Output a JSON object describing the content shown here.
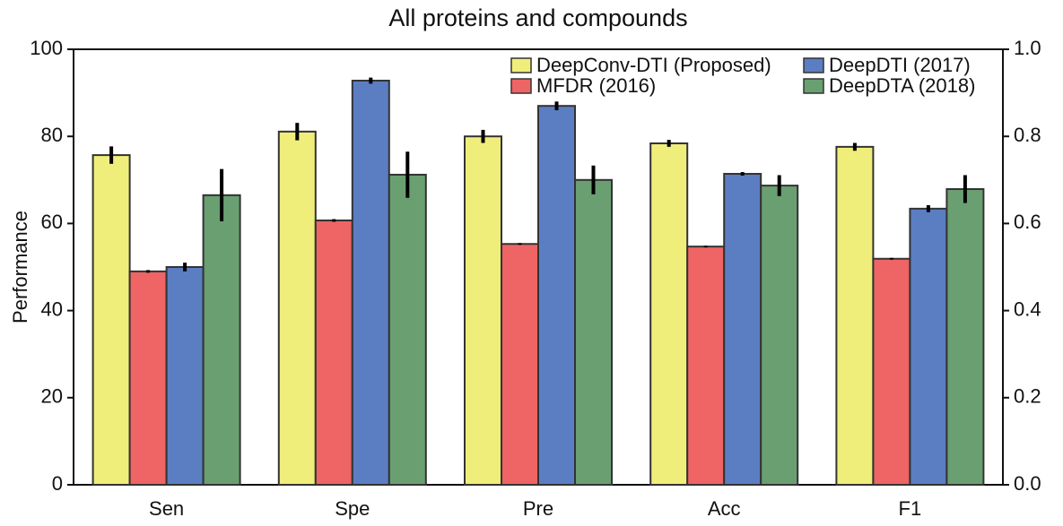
{
  "chart_data": {
    "type": "bar",
    "title": "All proteins and compounds",
    "y_label": "Performance",
    "categories": [
      "Sen",
      "Spe",
      "Pre",
      "Acc",
      "F1"
    ],
    "series": [
      {
        "name": "DeepConv-DTI (Proposed)",
        "color": "#f0ee7a",
        "values": [
          75.7,
          81.1,
          80.0,
          78.4,
          77.6
        ],
        "errors": [
          2.0,
          2.0,
          1.5,
          0.8,
          0.9
        ]
      },
      {
        "name": "MFDR (2016)",
        "color": "#ef6464",
        "values": [
          49.0,
          60.7,
          55.3,
          54.7,
          51.9
        ],
        "errors": [
          0.3,
          0.3,
          0.2,
          0.2,
          0.2
        ]
      },
      {
        "name": "DeepDTI (2017)",
        "color": "#5b7ec2",
        "values": [
          50.0,
          92.8,
          87.0,
          71.4,
          63.4
        ],
        "errors": [
          1.0,
          0.7,
          1.0,
          0.4,
          0.8
        ]
      },
      {
        "name": "DeepDTA (2018)",
        "color": "#6a9f72",
        "values": [
          66.5,
          71.2,
          70.0,
          68.7,
          67.9
        ],
        "errors": [
          6.0,
          5.3,
          3.3,
          2.4,
          3.2
        ]
      }
    ],
    "ylim": [
      0,
      100
    ],
    "yticks": [
      0,
      20,
      40,
      60,
      80,
      100
    ],
    "y2lim": [
      0,
      1
    ],
    "y2ticks": [
      {
        "value": 0,
        "label": "0.0"
      },
      0.2,
      0.4,
      0.6,
      0.8,
      {
        "value": 1,
        "label": "1.0"
      }
    ],
    "legend": "upper right",
    "grid": false
  }
}
